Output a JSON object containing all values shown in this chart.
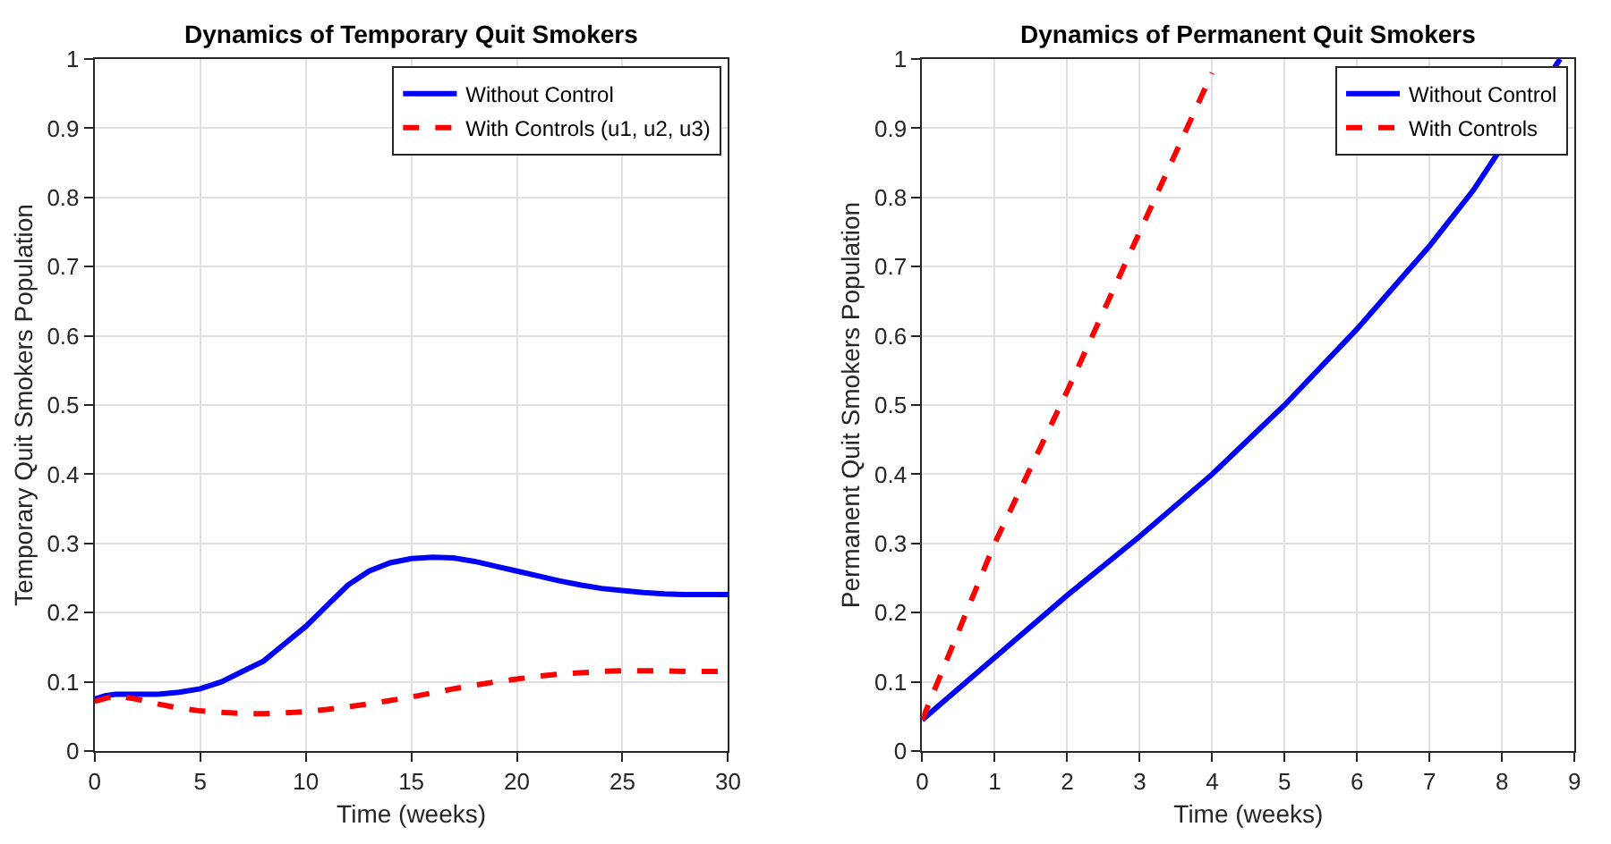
{
  "chart_data": [
    {
      "type": "line",
      "title": "Dynamics of Temporary Quit Smokers",
      "xlabel": "Time (weeks)",
      "ylabel": "Temporary Quit Smokers Population",
      "xlim": [
        0,
        30
      ],
      "xticks": [
        0,
        5,
        10,
        15,
        20,
        25,
        30
      ],
      "ylim": [
        0,
        1
      ],
      "yticks": [
        0,
        0.1,
        0.2,
        0.3,
        0.4,
        0.5,
        0.6,
        0.7,
        0.8,
        0.9,
        1
      ],
      "grid": true,
      "legend": "top right",
      "series": [
        {
          "name": "Without Control",
          "color": "#0000ff",
          "line_style": "solid",
          "x": [
            0,
            0.5,
            1,
            3,
            4,
            5,
            6,
            7,
            8,
            9,
            10,
            11,
            12,
            13,
            14,
            15,
            16,
            17,
            18,
            19,
            20,
            21,
            22,
            23,
            24,
            25,
            26,
            27,
            28,
            30
          ],
          "values": [
            0.075,
            0.08,
            0.082,
            0.082,
            0.085,
            0.09,
            0.1,
            0.115,
            0.13,
            0.155,
            0.18,
            0.21,
            0.24,
            0.26,
            0.272,
            0.278,
            0.28,
            0.279,
            0.274,
            0.267,
            0.26,
            0.253,
            0.246,
            0.24,
            0.235,
            0.232,
            0.229,
            0.227,
            0.226,
            0.226
          ]
        },
        {
          "name": "With Controls (u1, u2, u3)",
          "color": "#ff0000",
          "line_style": "dashed",
          "x": [
            0,
            1,
            2,
            3,
            4,
            5,
            6,
            7,
            8,
            9,
            10,
            11,
            12,
            13,
            14,
            15,
            16,
            17,
            18,
            19,
            20,
            21,
            22,
            23,
            24,
            25,
            26,
            27,
            28,
            30
          ],
          "values": [
            0.072,
            0.08,
            0.075,
            0.068,
            0.062,
            0.058,
            0.056,
            0.054,
            0.054,
            0.055,
            0.057,
            0.06,
            0.064,
            0.068,
            0.073,
            0.078,
            0.084,
            0.09,
            0.095,
            0.1,
            0.104,
            0.108,
            0.111,
            0.113,
            0.115,
            0.116,
            0.116,
            0.116,
            0.115,
            0.115
          ]
        }
      ]
    },
    {
      "type": "line",
      "title": "Dynamics of Permanent Quit Smokers",
      "xlabel": "Time (weeks)",
      "ylabel": "Permanent Quit Smokers Population",
      "xlim": [
        0,
        9
      ],
      "xticks": [
        0,
        1,
        2,
        3,
        4,
        5,
        6,
        7,
        8,
        9
      ],
      "ylim": [
        0,
        1
      ],
      "yticks": [
        0,
        0.1,
        0.2,
        0.3,
        0.4,
        0.5,
        0.6,
        0.7,
        0.8,
        0.9,
        1
      ],
      "grid": true,
      "legend": "top right",
      "series": [
        {
          "name": "Without Control",
          "color": "#0000ff",
          "line_style": "solid",
          "x": [
            0,
            1,
            2,
            3,
            4,
            5,
            6,
            7,
            7.6,
            8.8
          ],
          "values": [
            0.045,
            0.135,
            0.225,
            0.31,
            0.4,
            0.5,
            0.61,
            0.73,
            0.81,
            1.0
          ]
        },
        {
          "name": "With Controls",
          "color": "#ff0000",
          "line_style": "dashed",
          "x": [
            0,
            1,
            2,
            3,
            4
          ],
          "values": [
            0.045,
            0.3,
            0.52,
            0.75,
            0.98
          ]
        }
      ]
    }
  ]
}
